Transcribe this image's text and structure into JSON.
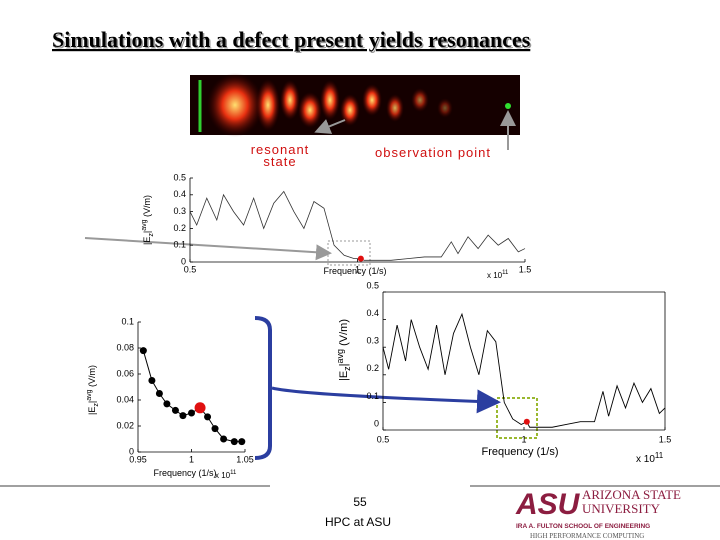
{
  "title": "Simulations with a defect present yields resonances",
  "annotations": {
    "resonant": [
      "resonant",
      "state"
    ],
    "observation": "observation point"
  },
  "footer": {
    "page": "55",
    "org": "HPC at ASU"
  },
  "logo": {
    "mark": "ASU",
    "name": [
      "ARIZONA STATE",
      "UNIVERSITY"
    ],
    "school": "IRA A. FULTON SCHOOL OF ENGINEERING",
    "unit": "HIGH PERFORMANCE COMPUTING"
  },
  "chart_data": [
    {
      "type": "line",
      "x": [
        0.5,
        0.52,
        0.55,
        0.58,
        0.6,
        0.63,
        0.66,
        0.69,
        0.72,
        0.75,
        0.78,
        0.81,
        0.84,
        0.87,
        0.9,
        0.93,
        0.96,
        0.99,
        1.01,
        1.02,
        1.05,
        1.1,
        1.15,
        1.2,
        1.25,
        1.28,
        1.3,
        1.33,
        1.36,
        1.39,
        1.42,
        1.45,
        1.48,
        1.5
      ],
      "series": [
        {
          "color": "#333333",
          "values": [
            0.3,
            0.22,
            0.38,
            0.25,
            0.4,
            0.3,
            0.22,
            0.38,
            0.2,
            0.35,
            0.42,
            0.3,
            0.2,
            0.36,
            0.32,
            0.1,
            0.04,
            0.02,
            0.02,
            0.01,
            0.01,
            0.01,
            0.02,
            0.03,
            0.03,
            0.12,
            0.05,
            0.15,
            0.08,
            0.16,
            0.1,
            0.14,
            0.06,
            0.08
          ]
        },
        {
          "color": "#e01010",
          "markers": true,
          "values": [
            null,
            null,
            null,
            null,
            null,
            null,
            null,
            null,
            null,
            null,
            null,
            null,
            null,
            null,
            null,
            null,
            null,
            null,
            0.02,
            null,
            null,
            null,
            null,
            null,
            null,
            null,
            null,
            null,
            null,
            null,
            null,
            null,
            null,
            null
          ]
        }
      ],
      "xlim": [
        0.5,
        1.5
      ],
      "ylim": [
        0,
        0.5
      ],
      "xticks": [
        0.5,
        1,
        1.5
      ],
      "yticks": [
        0,
        0.1,
        0.2,
        0.3,
        0.4,
        0.5
      ],
      "x_label": "Frequency (1/s)",
      "y_label_parts": [
        "|E",
        "z",
        "|",
        "avg",
        " (V/m)"
      ],
      "x_scale": {
        "base": "x 10",
        "exponent": "11"
      }
    },
    {
      "type": "line",
      "x": [
        0.5,
        0.52,
        0.55,
        0.58,
        0.6,
        0.63,
        0.66,
        0.69,
        0.72,
        0.75,
        0.78,
        0.81,
        0.84,
        0.87,
        0.9,
        0.93,
        0.96,
        0.99,
        1.01,
        1.02,
        1.05,
        1.1,
        1.15,
        1.2,
        1.25,
        1.28,
        1.3,
        1.33,
        1.36,
        1.39,
        1.42,
        1.45,
        1.48,
        1.5
      ],
      "series": [
        {
          "color": "#000000",
          "values": [
            0.3,
            0.22,
            0.38,
            0.25,
            0.4,
            0.3,
            0.22,
            0.38,
            0.2,
            0.35,
            0.42,
            0.3,
            0.2,
            0.36,
            0.32,
            0.1,
            0.04,
            0.02,
            0.03,
            0.01,
            0.01,
            0.01,
            0.02,
            0.03,
            0.03,
            0.14,
            0.05,
            0.16,
            0.08,
            0.17,
            0.1,
            0.15,
            0.06,
            0.08
          ]
        },
        {
          "color": "#e01010",
          "markers": true,
          "values": [
            null,
            null,
            null,
            null,
            null,
            null,
            null,
            null,
            null,
            null,
            null,
            null,
            null,
            null,
            null,
            null,
            null,
            null,
            0.03,
            null,
            null,
            null,
            null,
            null,
            null,
            null,
            null,
            null,
            null,
            null,
            null,
            null,
            null,
            null
          ]
        }
      ],
      "xlim": [
        0.5,
        1.5
      ],
      "ylim": [
        0,
        0.5
      ],
      "xticks": [
        0.5,
        1,
        1.5
      ],
      "yticks": [
        0,
        0.1,
        0.2,
        0.3,
        0.4,
        0.5
      ],
      "x_label": "Frequency (1/s)",
      "y_label_parts": [
        "|E",
        "z",
        "|",
        "avg",
        " (V/m)"
      ],
      "x_scale": {
        "base": "x 10",
        "exponent": "11"
      }
    },
    {
      "type": "line",
      "x": [
        0.955,
        0.963,
        0.97,
        0.977,
        0.985,
        0.992,
        1.0,
        1.008,
        1.015,
        1.022,
        1.03,
        1.04,
        1.047
      ],
      "series": [
        {
          "color": "#000000",
          "markers": true,
          "values": [
            0.078,
            0.055,
            0.045,
            0.037,
            0.032,
            0.028,
            0.03,
            0.034,
            0.027,
            0.018,
            0.01,
            0.008,
            0.008
          ]
        },
        {
          "color": "#e01010",
          "markers": true,
          "values": [
            null,
            null,
            null,
            null,
            null,
            null,
            null,
            0.034,
            null,
            null,
            null,
            null,
            null
          ]
        }
      ],
      "xlim": [
        0.95,
        1.05
      ],
      "ylim": [
        0,
        0.1
      ],
      "xticks": [
        0.95,
        1,
        1.05
      ],
      "yticks": [
        0,
        0.02,
        0.04,
        0.06,
        0.08,
        0.1
      ],
      "x_label": "Frequency (1/s)",
      "y_label_parts": [
        "|E",
        "z",
        "|",
        "avg",
        " (V/m)"
      ],
      "x_scale": {
        "base": "x 10",
        "exponent": "11"
      }
    }
  ]
}
